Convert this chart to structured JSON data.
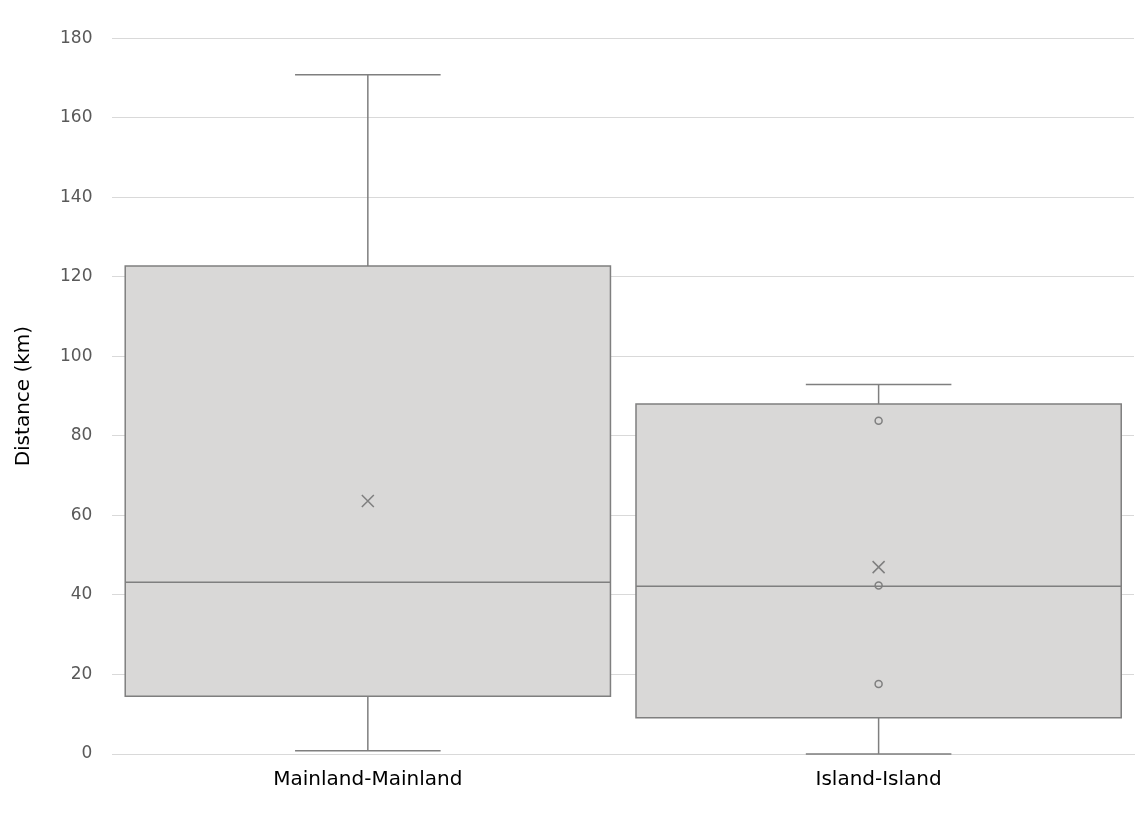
{
  "chart_data": {
    "type": "box",
    "ylabel": "Distance (km)",
    "categories": [
      "Mainland-Mainland",
      "Island-Island"
    ],
    "series": [
      {
        "color": "#d9d8d7",
        "boxes": [
          {
            "low": 0.8,
            "q1": 14.5,
            "median": 43.2,
            "q3": 122.7,
            "high": 170.8,
            "mean": 63.6
          },
          {
            "low": 0,
            "q1": 9.1,
            "median": 42.2,
            "q3": 88,
            "high": 92.9,
            "mean": 47,
            "outliers": [
              83.8,
              42.4,
              17.6
            ]
          }
        ]
      }
    ],
    "ylim": [
      0,
      180
    ],
    "yticks": [
      0,
      20,
      40,
      60,
      80,
      100,
      120,
      140,
      160,
      180
    ],
    "grid": "y"
  }
}
